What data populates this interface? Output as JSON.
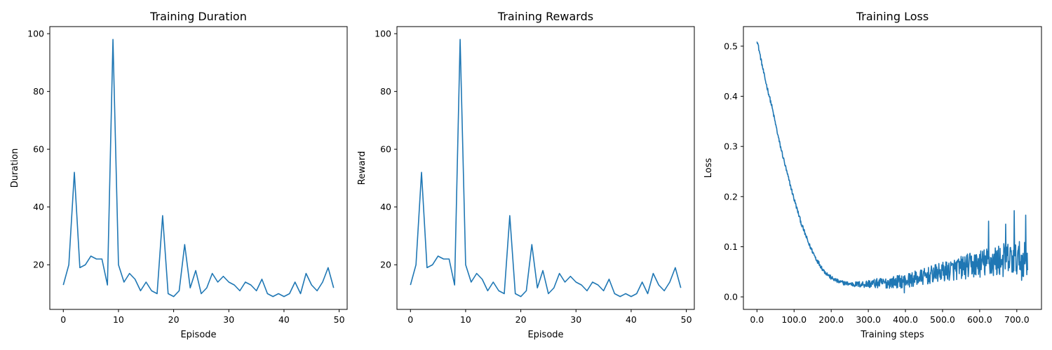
{
  "chart_data": [
    {
      "type": "line",
      "title": "Training Duration",
      "xlabel": "Episode",
      "ylabel": "Duration",
      "xlim": [
        -2.45,
        51.45
      ],
      "ylim": [
        4.55,
        102.45
      ],
      "xticks": [
        0,
        10,
        20,
        30,
        40,
        50
      ],
      "yticks": [
        20,
        40,
        60,
        80,
        100
      ],
      "grid": false,
      "color": "#1f77b4",
      "series": [
        {
          "x": [
            0,
            1,
            2,
            3,
            4,
            5,
            6,
            7,
            8,
            9,
            10,
            11,
            12,
            13,
            14,
            15,
            16,
            17,
            18,
            19,
            20,
            21,
            22,
            23,
            24,
            25,
            26,
            27,
            28,
            29,
            30,
            31,
            32,
            33,
            34,
            35,
            36,
            37,
            38,
            39,
            40,
            41,
            42,
            43,
            44,
            45,
            46,
            47,
            48,
            49
          ],
          "values": [
            13,
            20,
            52,
            19,
            20,
            23,
            22,
            22,
            13,
            98,
            20,
            14,
            17,
            15,
            11,
            14,
            11,
            10,
            37,
            10,
            9,
            11,
            27,
            12,
            18,
            10,
            12,
            17,
            14,
            16,
            14,
            13,
            11,
            14,
            13,
            11,
            15,
            10,
            9,
            10,
            9,
            10,
            14,
            10,
            17,
            13,
            11,
            14,
            19,
            12
          ]
        }
      ]
    },
    {
      "type": "line",
      "title": "Training Rewards",
      "xlabel": "Episode",
      "ylabel": "Reward",
      "xlim": [
        -2.45,
        51.45
      ],
      "ylim": [
        4.55,
        102.45
      ],
      "xticks": [
        0,
        10,
        20,
        30,
        40,
        50
      ],
      "yticks": [
        20,
        40,
        60,
        80,
        100
      ],
      "grid": false,
      "color": "#1f77b4",
      "series": [
        {
          "x": [
            0,
            1,
            2,
            3,
            4,
            5,
            6,
            7,
            8,
            9,
            10,
            11,
            12,
            13,
            14,
            15,
            16,
            17,
            18,
            19,
            20,
            21,
            22,
            23,
            24,
            25,
            26,
            27,
            28,
            29,
            30,
            31,
            32,
            33,
            34,
            35,
            36,
            37,
            38,
            39,
            40,
            41,
            42,
            43,
            44,
            45,
            46,
            47,
            48,
            49
          ],
          "values": [
            13,
            20,
            52,
            19,
            20,
            23,
            22,
            22,
            13,
            98,
            20,
            14,
            17,
            15,
            11,
            14,
            11,
            10,
            37,
            10,
            9,
            11,
            27,
            12,
            18,
            10,
            12,
            17,
            14,
            16,
            14,
            13,
            11,
            14,
            13,
            11,
            15,
            10,
            9,
            10,
            9,
            10,
            14,
            10,
            17,
            13,
            11,
            14,
            19,
            12
          ]
        }
      ]
    },
    {
      "type": "line",
      "title": "Training Loss",
      "xlabel": "Training steps",
      "ylabel": "Loss",
      "xlim": [
        -36.5,
        766.5
      ],
      "ylim": [
        -0.025,
        0.539
      ],
      "xticks": [
        0,
        100,
        200,
        300,
        400,
        500,
        600,
        700
      ],
      "yticks": [
        0.0,
        0.1,
        0.2,
        0.3,
        0.4,
        0.5
      ],
      "tick_format": "1dp",
      "grid": false,
      "color": "#1f77b4",
      "steps": 730,
      "trend": {
        "x": [
          0,
          20,
          40,
          60,
          80,
          100,
          120,
          140,
          160,
          180,
          200,
          220,
          240,
          260,
          280,
          300,
          350,
          400,
          450,
          500,
          550,
          600,
          650,
          700,
          729
        ],
        "values": [
          0.513,
          0.44,
          0.38,
          0.31,
          0.25,
          0.195,
          0.145,
          0.105,
          0.075,
          0.052,
          0.038,
          0.03,
          0.027,
          0.025,
          0.025,
          0.026,
          0.028,
          0.032,
          0.04,
          0.05,
          0.058,
          0.066,
          0.072,
          0.076,
          0.075
        ]
      },
      "noise": {
        "x": [
          0,
          250,
          300,
          400,
          500,
          600,
          650,
          729
        ],
        "values": [
          0.003,
          0.003,
          0.006,
          0.01,
          0.014,
          0.02,
          0.024,
          0.025
        ]
      },
      "spikes": [
        {
          "x": 624,
          "value": 0.151
        },
        {
          "x": 670,
          "value": 0.145
        },
        {
          "x": 693,
          "value": 0.172
        },
        {
          "x": 724,
          "value": 0.163
        },
        {
          "x": 713,
          "value": 0.033
        },
        {
          "x": 397,
          "value": 0.008
        }
      ]
    }
  ]
}
